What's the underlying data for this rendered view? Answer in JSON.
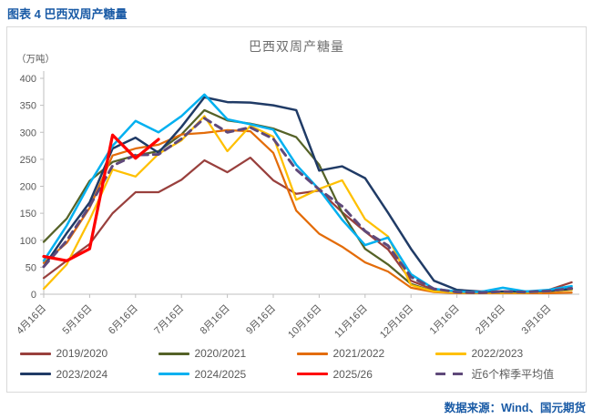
{
  "page": {
    "header": "图表 4 巴西双周产糖量",
    "source": "数据来源：Wind、国元期货",
    "accent_color": "#1a5ba6",
    "border_color": "#d9d9d9"
  },
  "chart_data": {
    "type": "line",
    "title": "巴西双周产糖量",
    "unit_label": "（万吨）",
    "xlabel": "",
    "ylabel": "",
    "ylim": [
      0,
      400
    ],
    "y_ticks": [
      0,
      50,
      100,
      150,
      200,
      250,
      300,
      350,
      400
    ],
    "x_tick_labels": [
      "4月16日",
      "5月16日",
      "6月16日",
      "7月16日",
      "8月16日",
      "9月16日",
      "10月16日",
      "11月16日",
      "12月16日",
      "1月16日",
      "2月16日",
      "3月16日"
    ],
    "points_per_tick": 2,
    "n_points": 24,
    "grid": false,
    "legend_position": "bottom",
    "axis_color": "#bfbfbf",
    "series": [
      {
        "name": "2019/2020",
        "color": "#99403d",
        "dash": false,
        "width": 2.25,
        "z": 1,
        "values": [
          30,
          62,
          93,
          150,
          189,
          189,
          212,
          248,
          226,
          253,
          211,
          186,
          192,
          152,
          116,
          83,
          25,
          8,
          4,
          3,
          3,
          3,
          8,
          22
        ]
      },
      {
        "name": "2020/2021",
        "color": "#556227",
        "dash": false,
        "width": 2.25,
        "z": 2,
        "values": [
          97,
          140,
          210,
          245,
          257,
          265,
          296,
          341,
          322,
          316,
          307,
          291,
          240,
          151,
          84,
          55,
          19,
          5,
          3,
          2,
          2,
          3,
          5,
          8
        ]
      },
      {
        "name": "2021/2022",
        "color": "#e36c09",
        "dash": false,
        "width": 2.25,
        "z": 3,
        "values": [
          58,
          95,
          160,
          257,
          270,
          277,
          296,
          299,
          304,
          302,
          262,
          155,
          112,
          88,
          59,
          42,
          12,
          4,
          2,
          2,
          2,
          2,
          2,
          3
        ]
      },
      {
        "name": "2022/2023",
        "color": "#ffc000",
        "dash": false,
        "width": 2.25,
        "z": 4,
        "values": [
          10,
          55,
          138,
          231,
          218,
          260,
          285,
          330,
          265,
          312,
          292,
          175,
          195,
          211,
          139,
          107,
          17,
          5,
          3,
          3,
          3,
          3,
          5,
          8
        ]
      },
      {
        "name": "2023/2024",
        "color": "#203b66",
        "dash": false,
        "width": 2.5,
        "z": 5,
        "values": [
          51,
          113,
          170,
          270,
          290,
          262,
          310,
          365,
          356,
          355,
          350,
          341,
          229,
          237,
          215,
          151,
          84,
          25,
          8,
          5,
          5,
          5,
          6,
          10
        ]
      },
      {
        "name": "2024/2025",
        "color": "#00b0f0",
        "dash": false,
        "width": 2.5,
        "z": 6,
        "values": [
          62,
          127,
          205,
          275,
          321,
          300,
          330,
          370,
          324,
          315,
          305,
          240,
          194,
          138,
          91,
          105,
          37,
          10,
          5,
          4,
          12,
          5,
          8,
          15
        ]
      },
      {
        "name": "2025/26",
        "color": "#ff0000",
        "dash": false,
        "width": 3.25,
        "z": 9,
        "values": [
          70,
          62,
          84,
          295,
          252,
          287
        ]
      },
      {
        "name": "近6个榨季平均值",
        "color": "#5f497a",
        "dash": true,
        "width": 3,
        "z": 8,
        "values": [
          51,
          99,
          163,
          238,
          258,
          259,
          288,
          326,
          300,
          309,
          288,
          231,
          194,
          163,
          117,
          90,
          32,
          10,
          4,
          3,
          5,
          4,
          6,
          11
        ]
      }
    ]
  }
}
